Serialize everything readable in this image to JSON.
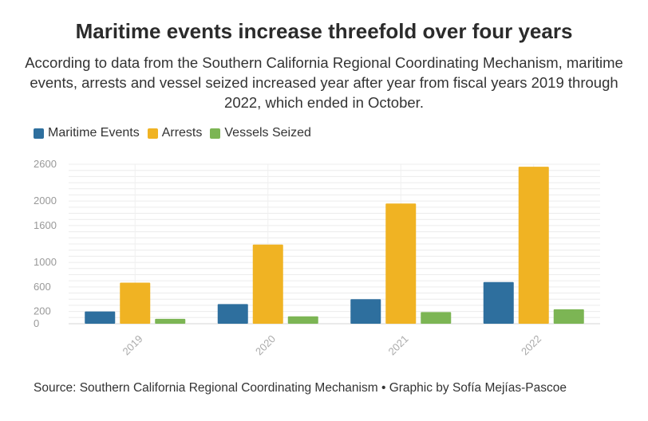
{
  "header": {
    "title": "Maritime events increase threefold over four years",
    "subtitle": "According to data from the Southern California Regional Coordinating Mechanism, maritime events, arrests and vessel seized increased year after year from fiscal years 2019 through 2022, which ended in October."
  },
  "footer": {
    "source": "Source: Southern California Regional Coordinating Mechanism • Graphic by Sofía Mejías-Pascoe"
  },
  "chart_data": {
    "type": "bar",
    "categories": [
      "2019",
      "2020",
      "2021",
      "2022"
    ],
    "series": [
      {
        "name": "Maritime Events",
        "color": "#2e6f9e",
        "values": [
          200,
          320,
          400,
          680
        ]
      },
      {
        "name": "Arrests",
        "color": "#f0b323",
        "values": [
          670,
          1290,
          1960,
          2560
        ]
      },
      {
        "name": "Vessels Seized",
        "color": "#7cb554",
        "values": [
          80,
          120,
          190,
          235
        ]
      }
    ],
    "y_ticks": [
      0,
      200,
      600,
      1000,
      1600,
      2000,
      2600
    ],
    "ylim": [
      0,
      2600
    ],
    "grid": true,
    "legend_position": "top-left",
    "xlabel": "",
    "ylabel": ""
  }
}
